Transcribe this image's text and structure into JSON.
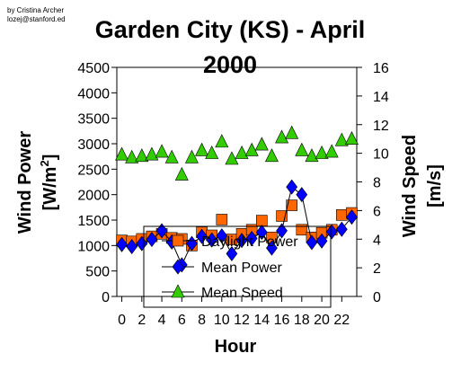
{
  "credit": {
    "line1": "by Cristina Archer",
    "line2": "lozej@stanford.ed"
  },
  "chart_data": {
    "type": "line",
    "title_line1": "Garden City (KS) - April",
    "title_line2": "2000",
    "xlabel": "Hour",
    "ylabel_left": "Wind Power",
    "ylabel_left_unit": "[W/m",
    "ylabel_left_unit_sup": "2",
    "ylabel_left_unit_end": "]",
    "ylabel_right_line1": "Wind Speed",
    "ylabel_right_line2": "[m/s]",
    "xlim": [
      -0.5,
      23.5
    ],
    "ylim_left": [
      0,
      4500
    ],
    "ylim_right": [
      0,
      16
    ],
    "x_ticks": [
      "0",
      "2",
      "4",
      "6",
      "8",
      "10",
      "12",
      "14",
      "16",
      "18",
      "20",
      "22"
    ],
    "y_left_ticks": [
      "0",
      "500",
      "1000",
      "1500",
      "2000",
      "2500",
      "3000",
      "3500",
      "4000",
      "4500"
    ],
    "y_right_ticks": [
      "0",
      "2",
      "4",
      "6",
      "8",
      "10",
      "12",
      "14",
      "16"
    ],
    "legend_position": "bottom-center",
    "x": [
      0,
      1,
      2,
      3,
      4,
      5,
      6,
      7,
      8,
      9,
      10,
      11,
      12,
      13,
      14,
      15,
      16,
      17,
      18,
      19,
      20,
      21,
      22,
      23
    ],
    "series": [
      {
        "name": "Daylight Power",
        "axis": "left",
        "marker": "square",
        "color": "#ff6600",
        "line": false,
        "values": [
          1100,
          1080,
          1130,
          1180,
          1230,
          1150,
          1130,
          1000,
          1260,
          1200,
          1510,
          1120,
          1230,
          1310,
          1490,
          1160,
          1580,
          1790,
          1310,
          1160,
          1250,
          1310,
          1600,
          1640
        ]
      },
      {
        "name": "Mean Power",
        "axis": "left",
        "marker": "diamond",
        "color": "#0000ff",
        "line": true,
        "values": [
          1020,
          980,
          1040,
          1120,
          1290,
          1070,
          620,
          1040,
          1180,
          1110,
          1190,
          840,
          1100,
          1140,
          1260,
          950,
          1290,
          2150,
          2000,
          1060,
          1090,
          1270,
          1320,
          1560
        ]
      },
      {
        "name": "Mean Speed",
        "axis": "right",
        "marker": "triangle",
        "color": "#33cc00",
        "line": false,
        "values": [
          9.9,
          9.7,
          9.8,
          9.9,
          10.1,
          9.7,
          8.5,
          9.7,
          10.2,
          10.0,
          10.8,
          9.6,
          10.0,
          10.2,
          10.6,
          9.8,
          11.1,
          11.4,
          10.2,
          9.8,
          10.0,
          10.1,
          10.9,
          11.0
        ]
      }
    ]
  }
}
